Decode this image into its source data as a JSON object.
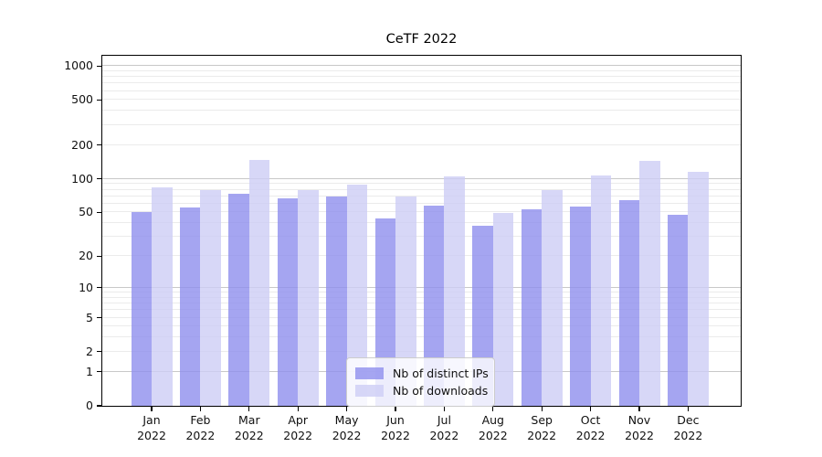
{
  "chart_data": {
    "type": "bar",
    "title": "CeTF 2022",
    "xlabel": "",
    "ylabel": "",
    "yscale": "log1p",
    "grid": "major and minor horizontal gridlines",
    "legend_position": "lower center",
    "categories": [
      "Jan 2022",
      "Feb 2022",
      "Mar 2022",
      "Apr 2022",
      "May 2022",
      "Jun 2022",
      "Jul 2022",
      "Aug 2022",
      "Sep 2022",
      "Oct 2022",
      "Nov 2022",
      "Dec 2022"
    ],
    "series": [
      {
        "name": "Nb of distinct IPs",
        "color": "#a5a5f3",
        "values": [
          50,
          55,
          74,
          67,
          69,
          44,
          58,
          38,
          53,
          56,
          64,
          48
        ]
      },
      {
        "name": "Nb of downloads",
        "color": "#d7d7f7",
        "values": [
          84,
          79,
          147,
          80,
          89,
          69,
          105,
          49,
          80,
          107,
          145,
          116
        ]
      }
    ],
    "yticks": [
      0,
      1,
      2,
      5,
      10,
      20,
      50,
      100,
      200,
      500,
      1000
    ],
    "ylim": [
      0,
      1230
    ]
  },
  "colors": {
    "ips_base": "#8f8fee",
    "downloads_base": "#cdcdf5",
    "bar_alpha": 0.8,
    "grid_major": "#c8c8c8",
    "grid_minor": "#ebebeb",
    "axis": "#000000",
    "legend_border": "#cccccc",
    "text": "#111111"
  }
}
